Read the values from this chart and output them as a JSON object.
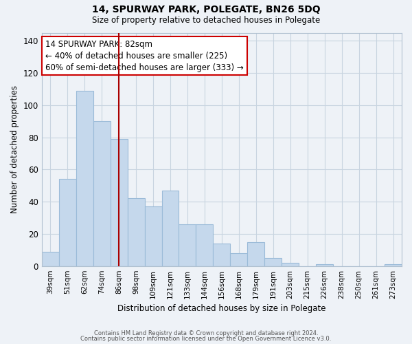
{
  "title": "14, SPURWAY PARK, POLEGATE, BN26 5DQ",
  "subtitle": "Size of property relative to detached houses in Polegate",
  "xlabel": "Distribution of detached houses by size in Polegate",
  "ylabel": "Number of detached properties",
  "categories": [
    "39sqm",
    "51sqm",
    "62sqm",
    "74sqm",
    "86sqm",
    "98sqm",
    "109sqm",
    "121sqm",
    "133sqm",
    "144sqm",
    "156sqm",
    "168sqm",
    "179sqm",
    "191sqm",
    "203sqm",
    "215sqm",
    "226sqm",
    "238sqm",
    "250sqm",
    "261sqm",
    "273sqm"
  ],
  "values": [
    9,
    54,
    109,
    90,
    79,
    42,
    37,
    47,
    26,
    26,
    14,
    8,
    15,
    5,
    2,
    0,
    1,
    0,
    0,
    0,
    1
  ],
  "bar_color": "#c5d8ec",
  "bar_edge_color": "#9bbbd8",
  "vline_x_index": 4,
  "vline_color": "#aa0000",
  "annotation_line1": "14 SPURWAY PARK: 82sqm",
  "annotation_line2": "← 40% of detached houses are smaller (225)",
  "annotation_line3": "60% of semi-detached houses are larger (333) →",
  "annotation_box_color": "#ffffff",
  "annotation_box_edge_color": "#cc0000",
  "ylim": [
    0,
    145
  ],
  "yticks": [
    0,
    20,
    40,
    60,
    80,
    100,
    120,
    140
  ],
  "footer_line1": "Contains HM Land Registry data © Crown copyright and database right 2024.",
  "footer_line2": "Contains public sector information licensed under the Open Government Licence v3.0.",
  "bg_color": "#eef2f7",
  "plot_bg_color": "#eef2f7",
  "grid_color": "#c8d4e0"
}
